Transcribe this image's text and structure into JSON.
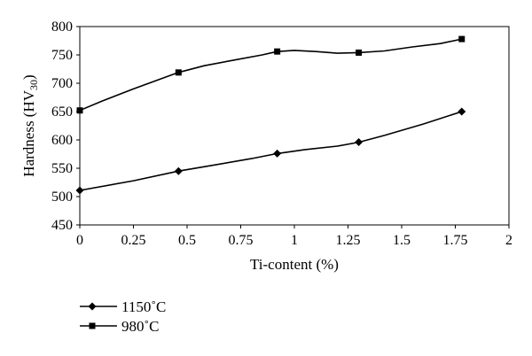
{
  "chart_data": {
    "type": "line",
    "title": "",
    "xlabel": "Ti-content (%)",
    "ylabel_main": "Hardness (HV",
    "ylabel_sub": "30",
    "ylabel_close": ")",
    "xlim": [
      0,
      2
    ],
    "ylim": [
      450,
      800
    ],
    "xticks": [
      0,
      0.25,
      0.5,
      0.75,
      1,
      1.25,
      1.5,
      1.75,
      2
    ],
    "xtick_labels": [
      "0",
      "0.25",
      "0.5",
      "0.75",
      "1",
      "1.25",
      "1.5",
      "1.75",
      "2"
    ],
    "yticks": [
      450,
      500,
      550,
      600,
      650,
      700,
      750,
      800
    ],
    "ytick_labels": [
      "450",
      "500",
      "550",
      "600",
      "650",
      "700",
      "750",
      "800"
    ],
    "grid": false,
    "legend_position": "bottom-left",
    "series": [
      {
        "name": "1150˚C",
        "marker": "diamond",
        "x": [
          0,
          0.46,
          0.92,
          1.3,
          1.78
        ],
        "y": [
          511,
          545,
          576,
          596,
          650
        ],
        "curve_x": [
          0,
          0.25,
          0.46,
          0.6,
          0.8,
          0.92,
          1.05,
          1.2,
          1.3,
          1.42,
          1.6,
          1.78
        ],
        "curve_y": [
          511,
          528,
          545,
          554,
          567,
          576,
          583,
          589,
          596,
          608,
          628,
          650
        ]
      },
      {
        "name": "980˚C",
        "marker": "square",
        "x": [
          0,
          0.46,
          0.92,
          1.3,
          1.78
        ],
        "y": [
          652,
          719,
          756,
          754,
          778
        ],
        "curve_x": [
          0,
          0.1,
          0.25,
          0.46,
          0.58,
          0.72,
          0.85,
          0.92,
          1.0,
          1.1,
          1.2,
          1.3,
          1.42,
          1.55,
          1.68,
          1.78
        ],
        "curve_y": [
          652,
          668,
          690,
          719,
          731,
          741,
          750,
          756,
          758,
          756,
          753,
          754,
          757,
          764,
          770,
          778
        ]
      }
    ]
  }
}
